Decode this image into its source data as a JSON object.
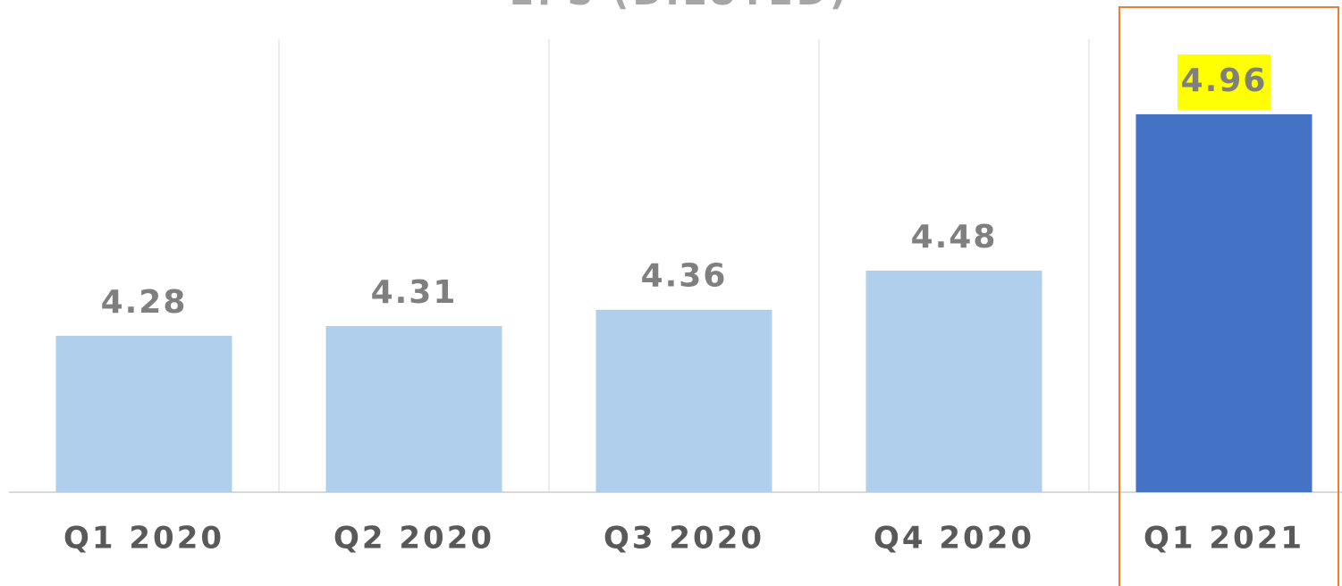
{
  "chart_data": {
    "type": "bar",
    "title": "EPS (DILUTED)",
    "categories": [
      "Q1 2020",
      "Q2 2020",
      "Q3 2020",
      "Q4 2020",
      "Q1 2021"
    ],
    "values": [
      4.28,
      4.31,
      4.36,
      4.48,
      4.96
    ],
    "colors": [
      "#b0cfec",
      "#b0cfec",
      "#b0cfec",
      "#b0cfec",
      "#4472c4"
    ],
    "ylim": [
      3.8,
      5.19
    ]
  }
}
